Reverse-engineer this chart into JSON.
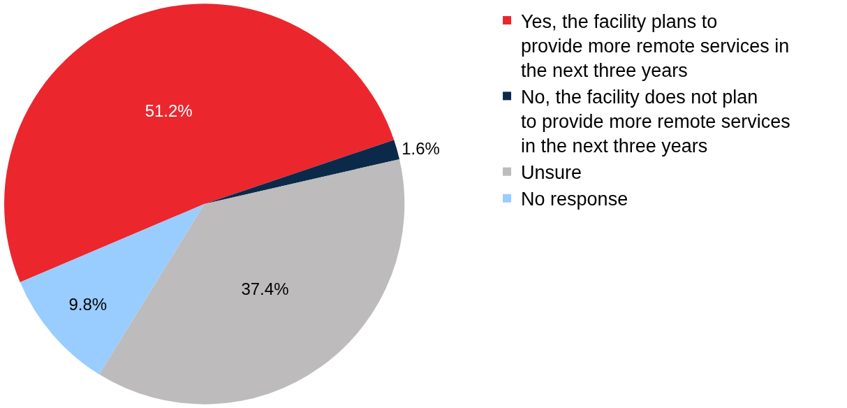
{
  "chart_data": {
    "type": "pie",
    "categories": [
      "Yes, the facility plans to provide more remote services in the next three years",
      "No, the facility does not plan to provide more remote services in the next three years",
      "Unsure",
      "No response"
    ],
    "values": [
      51.2,
      1.6,
      37.4,
      9.8
    ],
    "colors": [
      "#ec262d",
      "#0b2a4a",
      "#bdbbbc",
      "#99ccff"
    ],
    "value_labels": [
      "51.2%",
      "1.6%",
      "37.4%",
      "9.8%"
    ],
    "legend": "right"
  }
}
